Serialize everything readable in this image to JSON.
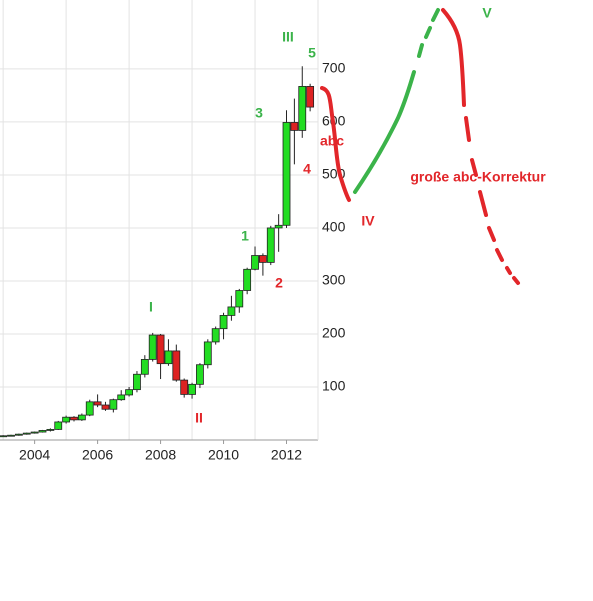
{
  "chart_data": {
    "type": "candlestick",
    "x": [
      2003.0,
      2003.25,
      2003.5,
      2003.75,
      2004.0,
      2004.25,
      2004.5,
      2004.75,
      2005.0,
      2005.25,
      2005.5,
      2005.75,
      2006.0,
      2006.25,
      2006.5,
      2006.75,
      2007.0,
      2007.25,
      2007.5,
      2007.75,
      2008.0,
      2008.25,
      2008.5,
      2008.75,
      2009.0,
      2009.25,
      2009.5,
      2009.75,
      2010.0,
      2010.25,
      2010.5,
      2010.75,
      2011.0,
      2011.25,
      2011.5,
      2011.75,
      2012.0,
      2012.25,
      2012.5,
      2012.75
    ],
    "open": [
      7,
      8,
      9,
      11,
      13,
      15,
      18,
      20,
      34,
      43,
      38,
      47,
      72,
      66,
      58,
      76,
      85,
      95,
      124,
      152,
      198,
      144,
      168,
      113,
      86,
      105,
      142,
      185,
      210,
      235,
      251,
      282,
      322,
      348,
      335,
      400,
      405,
      599,
      584,
      667
    ],
    "high": [
      9,
      10,
      12,
      14,
      16,
      19,
      22,
      36,
      46,
      45,
      50,
      76,
      86,
      72,
      78,
      94,
      100,
      130,
      160,
      202,
      200,
      190,
      180,
      116,
      108,
      145,
      190,
      214,
      240,
      272,
      285,
      325,
      365,
      352,
      404,
      426,
      622,
      644,
      705,
      672
    ],
    "low": [
      6,
      7,
      8,
      10,
      12,
      14,
      16,
      19,
      31,
      35,
      36,
      45,
      62,
      55,
      52,
      74,
      82,
      90,
      118,
      148,
      115,
      140,
      110,
      80,
      78,
      98,
      135,
      180,
      190,
      225,
      240,
      275,
      320,
      310,
      330,
      355,
      400,
      520,
      570,
      620
    ],
    "close": [
      8,
      9,
      11,
      13,
      15,
      18,
      20,
      34,
      43,
      38,
      47,
      72,
      66,
      58,
      76,
      85,
      95,
      124,
      152,
      198,
      144,
      168,
      113,
      86,
      105,
      142,
      185,
      210,
      235,
      251,
      282,
      322,
      348,
      335,
      400,
      405,
      599,
      584,
      667,
      628
    ],
    "up_color": "#22dd22",
    "down_color": "#dd2222",
    "xlim": [
      2002.9,
      2013
    ],
    "xticks": [
      2004,
      2006,
      2008,
      2010,
      2012
    ],
    "x_minor_ticks": [
      2003,
      2005,
      2007,
      2009,
      2011
    ],
    "ylim": [
      0,
      830
    ],
    "yticks": [
      100,
      200,
      300,
      400,
      500,
      600,
      700
    ],
    "grid": true,
    "annotations": [
      {
        "text": "III",
        "color": "#3bb34a"
      },
      {
        "text": "5",
        "color": "#3bb34a"
      },
      {
        "text": "3",
        "color": "#3bb34a"
      },
      {
        "text": "abc",
        "color": "#e2262a"
      },
      {
        "text": "4",
        "color": "#e2262a"
      },
      {
        "text": "1",
        "color": "#3bb34a"
      },
      {
        "text": "2",
        "color": "#e2262a"
      },
      {
        "text": "I",
        "color": "#3bb34a"
      },
      {
        "text": "II",
        "color": "#e2262a"
      },
      {
        "text": "IV",
        "color": "#e2262a"
      },
      {
        "text": "V",
        "color": "#3bb34a"
      },
      {
        "text": "große abc-Korrektur",
        "color": "#e2262a"
      }
    ]
  }
}
